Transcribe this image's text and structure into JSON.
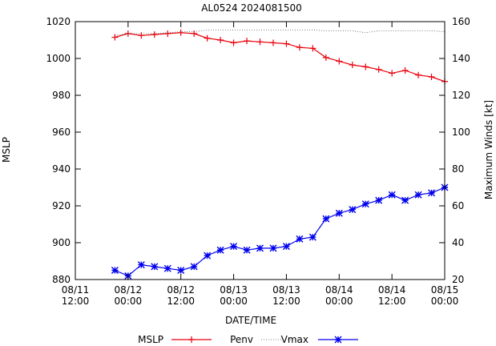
{
  "chart_data": {
    "type": "line",
    "title": "AL0524 2024081500",
    "xlabel": "DATE/TIME",
    "ylabel_left": "MSLP",
    "ylabel_right": "Maximum Winds [kt]",
    "x_range_hours": [
      0,
      84
    ],
    "x_ticks": [
      {
        "h": 0,
        "line1": "08/11",
        "line2": "12:00"
      },
      {
        "h": 12,
        "line1": "08/12",
        "line2": "00:00"
      },
      {
        "h": 24,
        "line1": "08/12",
        "line2": "12:00"
      },
      {
        "h": 36,
        "line1": "08/13",
        "line2": "00:00"
      },
      {
        "h": 48,
        "line1": "08/13",
        "line2": "12:00"
      },
      {
        "h": 60,
        "line1": "08/14",
        "line2": "00:00"
      },
      {
        "h": 72,
        "line1": "08/14",
        "line2": "12:00"
      },
      {
        "h": 84,
        "line1": "08/15",
        "line2": "00:00"
      }
    ],
    "ylim_left": [
      880,
      1020
    ],
    "yticks_left": [
      "880",
      "900",
      "920",
      "940",
      "960",
      "980",
      "1000",
      "1020"
    ],
    "ylim_right": [
      20,
      160
    ],
    "yticks_right": [
      "20",
      "40",
      "60",
      "80",
      "100",
      "120",
      "140",
      "160"
    ],
    "x_hours": [
      9,
      12,
      15,
      18,
      21,
      24,
      27,
      30,
      33,
      36,
      39,
      42,
      45,
      48,
      51,
      54,
      57,
      60,
      63,
      66,
      69,
      72,
      75,
      78,
      81,
      84
    ],
    "series": [
      {
        "name": "MSLP",
        "axis": "left",
        "color": "#e8000b",
        "marker": "plus",
        "values": [
          1011.5,
          1013.5,
          1012.5,
          1013,
          1013.5,
          1014,
          1013.5,
          1011,
          1010,
          1008.5,
          1009.5,
          1009,
          1008.5,
          1008,
          1006,
          1005.5,
          1000.5,
          998.5,
          996.5,
          995.5,
          994,
          992,
          993.5,
          991,
          990,
          987.5
        ]
      },
      {
        "name": "Penv",
        "axis": "left",
        "color": "#555555",
        "marker": "none",
        "values": [
          1012.5,
          1013.5,
          1013.5,
          1013.5,
          1014,
          1014.5,
          1014.5,
          1015.5,
          1015.5,
          1015.5,
          1015.5,
          1015.5,
          1015.5,
          1015.5,
          1015.5,
          1015.5,
          1015,
          1015,
          1015,
          1014,
          1015,
          1015,
          1015,
          1015,
          1015,
          1014.5
        ]
      },
      {
        "name": "Vmax",
        "axis": "right",
        "color": "#0000ee",
        "marker": "star",
        "values": [
          25,
          22,
          28,
          27,
          26,
          25,
          27,
          33,
          36,
          38,
          36,
          37,
          37,
          38,
          42,
          43,
          53,
          56,
          58,
          61,
          63,
          66,
          63,
          66,
          67,
          70
        ]
      }
    ],
    "legend": {
      "position": "bottom",
      "entries": [
        "MSLP",
        "Penv",
        "Vmax"
      ]
    }
  }
}
